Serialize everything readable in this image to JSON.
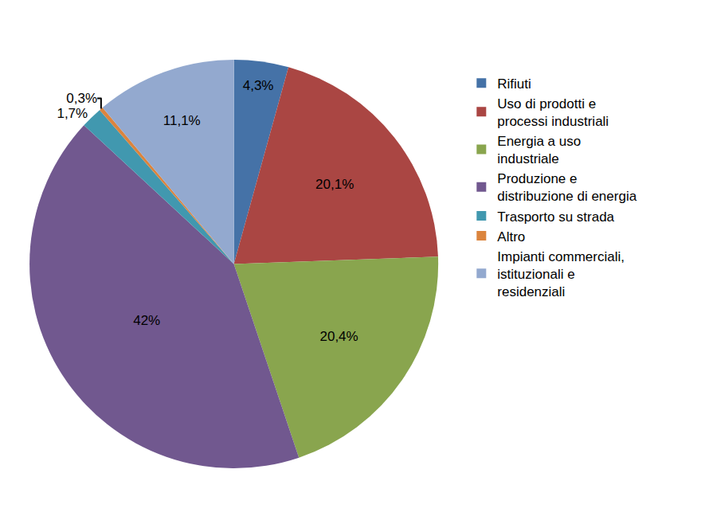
{
  "chart_data": {
    "type": "pie",
    "categories": [
      "Rifiuti",
      "Uso di prodotti e processi industriali",
      "Energia a uso industriale",
      "Produzione e distribuzione di energia",
      "Trasporto su strada",
      "Altro",
      "Impianti commerciali, istituzionali e residenziali"
    ],
    "values": [
      4.3,
      20.1,
      20.4,
      42,
      1.7,
      0.3,
      11.1
    ],
    "value_labels": [
      "4,3%",
      "20,1%",
      "20,4%",
      "42%",
      "1,7%",
      "0,3%",
      "11,1%"
    ],
    "colors": [
      "#4572A7",
      "#AA4643",
      "#89A54E",
      "#71588F",
      "#4198AF",
      "#DB843D",
      "#93A9CF"
    ],
    "data_labels": true,
    "legend": "right"
  }
}
